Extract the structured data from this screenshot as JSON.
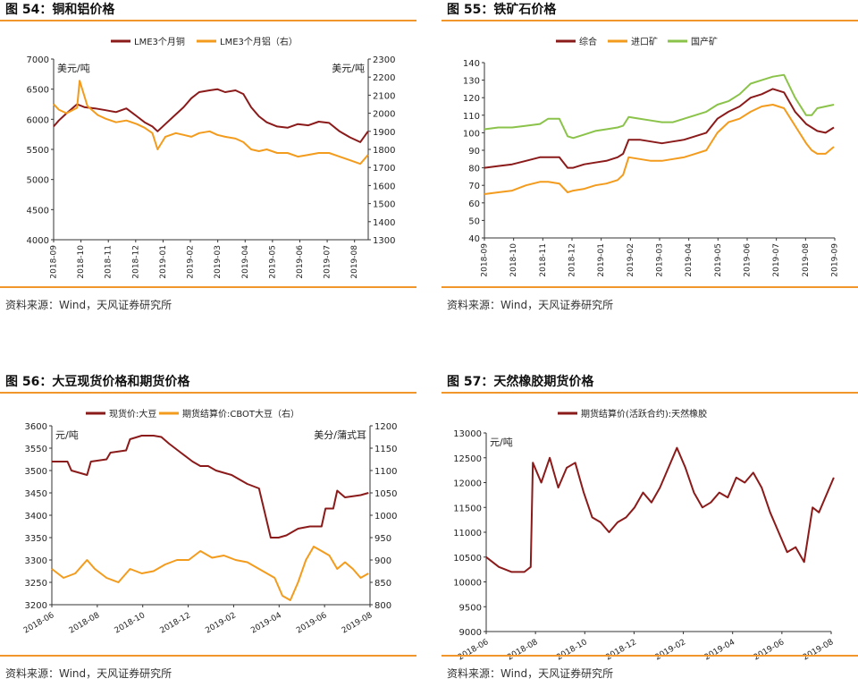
{
  "panels": [
    {
      "title": "图 54：铜和铝价格",
      "source": "资料来源：Wind，天风证券研究所"
    },
    {
      "title": "图 55：铁矿石价格",
      "source": "资料来源：Wind，天风证券研究所"
    },
    {
      "title": "图 56：大豆现货价格和期货价格",
      "source": "资料来源：Wind，天风证券研究所"
    },
    {
      "title": "图 57：天然橡胶期货价格",
      "source": "资料来源：Wind，天风证券研究所"
    }
  ],
  "chart_data": [
    {
      "type": "line",
      "title": "图 54：铜和铝价格",
      "ylabel_left": "美元/吨",
      "ylabel_right": "美元/吨",
      "ylim_left": [
        4000,
        7000
      ],
      "yticks_left": [
        4000,
        4500,
        5000,
        5500,
        6000,
        6500,
        7000
      ],
      "ylim_right": [
        1300,
        2300
      ],
      "yticks_right": [
        1300,
        1400,
        1500,
        1600,
        1700,
        1800,
        1900,
        2000,
        2100,
        2200,
        2300
      ],
      "xticks": [
        "2018-09",
        "2018-10",
        "2018-11",
        "2018-12",
        "2019-01",
        "2019-02",
        "2019-03",
        "2019-04",
        "2019-05",
        "2019-06",
        "2019-07",
        "2019-08"
      ],
      "legend_position": "top",
      "series": [
        {
          "name": "LME3个月铜",
          "axis": "left",
          "color": "#8b1a1a",
          "x": [
            0,
            0.2,
            0.5,
            0.9,
            1.2,
            1.6,
            2.0,
            2.4,
            2.8,
            3.2,
            3.5,
            3.8,
            4.0,
            4.3,
            4.7,
            5.0,
            5.3,
            5.6,
            6.0,
            6.3,
            6.6,
            7.0,
            7.3,
            7.6,
            7.9,
            8.2,
            8.6,
            9.0,
            9.4,
            9.8,
            10.2,
            10.6,
            11.0,
            11.4,
            11.8,
            12.1
          ],
          "values": [
            5880,
            5980,
            6100,
            6250,
            6200,
            6180,
            6150,
            6120,
            6180,
            6050,
            5950,
            5880,
            5800,
            5920,
            6080,
            6200,
            6350,
            6450,
            6480,
            6500,
            6450,
            6480,
            6420,
            6200,
            6050,
            5950,
            5880,
            5860,
            5920,
            5900,
            5960,
            5940,
            5800,
            5700,
            5620,
            5800
          ]
        },
        {
          "name": "LME3个月铝（右）",
          "axis": "right",
          "color": "#f39b1c",
          "x": [
            0,
            0.2,
            0.5,
            0.9,
            1.0,
            1.3,
            1.7,
            2.0,
            2.4,
            2.8,
            3.2,
            3.5,
            3.8,
            4.0,
            4.3,
            4.7,
            5.0,
            5.3,
            5.6,
            6.0,
            6.3,
            6.6,
            7.0,
            7.3,
            7.6,
            7.9,
            8.2,
            8.6,
            9.0,
            9.4,
            9.8,
            10.2,
            10.6,
            11.0,
            11.4,
            11.8,
            12.1
          ],
          "values": [
            2050,
            2020,
            2000,
            2030,
            2180,
            2040,
            1990,
            1970,
            1950,
            1960,
            1940,
            1920,
            1890,
            1800,
            1870,
            1890,
            1880,
            1870,
            1890,
            1900,
            1880,
            1870,
            1860,
            1840,
            1800,
            1790,
            1800,
            1780,
            1780,
            1760,
            1770,
            1780,
            1780,
            1760,
            1740,
            1720,
            1770
          ]
        }
      ]
    },
    {
      "type": "line",
      "title": "图 55：铁矿石价格",
      "ylim": [
        40,
        140
      ],
      "yticks": [
        40,
        50,
        60,
        70,
        80,
        90,
        100,
        110,
        120,
        130,
        140
      ],
      "xticks": [
        "2018-09",
        "2018-10",
        "2018-11",
        "2018-12",
        "2019-01",
        "2019-02",
        "2019-03",
        "2019-04",
        "2019-05",
        "2019-06",
        "2019-07",
        "2019-08",
        "2019-09"
      ],
      "legend_position": "top",
      "series": [
        {
          "name": "综合",
          "color": "#8b1a1a",
          "x": [
            0,
            0.5,
            1,
            1.5,
            2,
            2.3,
            2.7,
            3.0,
            3.2,
            3.6,
            4.0,
            4.4,
            4.8,
            5.0,
            5.2,
            5.6,
            6.0,
            6.4,
            6.8,
            7.2,
            7.6,
            8.0,
            8.4,
            8.8,
            9.2,
            9.6,
            10.0,
            10.4,
            10.8,
            11.2,
            11.6,
            11.8,
            12.0,
            12.3,
            12.6
          ],
          "values": [
            80,
            81,
            82,
            84,
            86,
            86,
            86,
            80,
            80,
            82,
            83,
            84,
            86,
            88,
            96,
            96,
            95,
            94,
            95,
            96,
            98,
            100,
            108,
            112,
            115,
            120,
            122,
            125,
            123,
            112,
            105,
            103,
            101,
            100,
            103
          ]
        },
        {
          "name": "进口矿",
          "color": "#f39b1c",
          "x": [
            0,
            0.5,
            1,
            1.5,
            2,
            2.3,
            2.7,
            3.0,
            3.2,
            3.6,
            4.0,
            4.4,
            4.8,
            5.0,
            5.2,
            5.6,
            6.0,
            6.4,
            6.8,
            7.2,
            7.6,
            8.0,
            8.4,
            8.8,
            9.2,
            9.6,
            10.0,
            10.4,
            10.8,
            11.2,
            11.6,
            11.8,
            12.0,
            12.3,
            12.6
          ],
          "values": [
            65,
            66,
            67,
            70,
            72,
            72,
            71,
            66,
            67,
            68,
            70,
            71,
            73,
            76,
            86,
            85,
            84,
            84,
            85,
            86,
            88,
            90,
            100,
            106,
            108,
            112,
            115,
            116,
            114,
            104,
            94,
            90,
            88,
            88,
            92
          ]
        },
        {
          "name": "国产矿",
          "color": "#8bc34a",
          "x": [
            0,
            0.5,
            1,
            1.5,
            2,
            2.3,
            2.7,
            3.0,
            3.2,
            3.6,
            4.0,
            4.4,
            4.8,
            5.0,
            5.2,
            5.6,
            6.0,
            6.4,
            6.8,
            7.2,
            7.6,
            8.0,
            8.4,
            8.8,
            9.2,
            9.6,
            10.0,
            10.4,
            10.8,
            11.2,
            11.6,
            11.8,
            12.0,
            12.3,
            12.6
          ],
          "values": [
            102,
            103,
            103,
            104,
            105,
            108,
            108,
            98,
            97,
            99,
            101,
            102,
            103,
            104,
            109,
            108,
            107,
            106,
            106,
            108,
            110,
            112,
            116,
            118,
            122,
            128,
            130,
            132,
            133,
            120,
            110,
            110,
            114,
            115,
            116
          ]
        }
      ]
    },
    {
      "type": "line",
      "title": "图 56：大豆现货价格和期货价格",
      "ylabel_left": "元/吨",
      "ylabel_right": "美分/蒲式耳",
      "ylim_left": [
        3200,
        3600
      ],
      "yticks_left": [
        3200,
        3250,
        3300,
        3350,
        3400,
        3450,
        3500,
        3550,
        3600
      ],
      "ylim_right": [
        800,
        1200
      ],
      "yticks_right": [
        800,
        850,
        900,
        950,
        1000,
        1050,
        1100,
        1150,
        1200
      ],
      "xticks": [
        "2018-06",
        "2018-08",
        "2018-10",
        "2018-12",
        "2019-02",
        "2019-04",
        "2019-06",
        "2019-08"
      ],
      "legend_position": "top",
      "series": [
        {
          "name": "现货价:大豆",
          "axis": "left",
          "color": "#8b1a1a",
          "x": [
            0,
            0.4,
            0.5,
            0.9,
            1.0,
            1.4,
            1.5,
            1.9,
            2.0,
            2.3,
            2.6,
            2.8,
            3.0,
            3.3,
            3.6,
            3.8,
            4.0,
            4.2,
            4.4,
            4.6,
            4.8,
            5.0,
            5.3,
            5.6,
            5.8,
            6.0,
            6.3,
            6.6,
            6.9,
            7.0,
            7.2,
            7.3,
            7.5,
            7.9,
            8.1
          ],
          "values": [
            3520,
            3520,
            3500,
            3490,
            3520,
            3525,
            3540,
            3545,
            3570,
            3578,
            3578,
            3575,
            3560,
            3540,
            3520,
            3510,
            3510,
            3500,
            3495,
            3490,
            3480,
            3470,
            3460,
            3350,
            3350,
            3355,
            3370,
            3375,
            3375,
            3415,
            3415,
            3455,
            3440,
            3445,
            3450
          ]
        },
        {
          "name": "期货结算价:CBOT大豆（右）",
          "axis": "right",
          "color": "#f39b1c",
          "x": [
            0,
            0.3,
            0.6,
            0.9,
            1.1,
            1.4,
            1.7,
            2.0,
            2.3,
            2.6,
            2.9,
            3.2,
            3.5,
            3.8,
            4.1,
            4.4,
            4.7,
            5.0,
            5.3,
            5.5,
            5.7,
            5.9,
            6.1,
            6.3,
            6.5,
            6.7,
            6.9,
            7.1,
            7.3,
            7.5,
            7.7,
            7.9,
            8.1
          ],
          "values": [
            880,
            860,
            870,
            900,
            880,
            860,
            850,
            880,
            870,
            875,
            890,
            900,
            900,
            920,
            905,
            910,
            900,
            895,
            880,
            870,
            860,
            820,
            810,
            850,
            900,
            930,
            920,
            910,
            880,
            895,
            880,
            860,
            870
          ]
        }
      ]
    },
    {
      "type": "line",
      "title": "图 57：天然橡胶期货价格",
      "ylabel": "元/吨",
      "ylim": [
        9000,
        13000
      ],
      "yticks": [
        9000,
        9500,
        10000,
        10500,
        11000,
        11500,
        12000,
        12500,
        13000
      ],
      "xticks": [
        "2018-06",
        "2018-08",
        "2018-10",
        "2018-12",
        "2019-02",
        "2019-04",
        "2019-06",
        "2019-08"
      ],
      "legend_position": "top",
      "series": [
        {
          "name": "期货结算价(活跃合约):天然橡胶",
          "color": "#8b1a1a",
          "x": [
            0,
            0.3,
            0.6,
            0.9,
            1.05,
            1.1,
            1.3,
            1.5,
            1.7,
            1.9,
            2.1,
            2.3,
            2.5,
            2.7,
            2.9,
            3.1,
            3.3,
            3.5,
            3.7,
            3.9,
            4.1,
            4.3,
            4.5,
            4.7,
            4.9,
            5.1,
            5.3,
            5.5,
            5.7,
            5.9,
            6.1,
            6.3,
            6.5,
            6.7,
            6.9,
            7.1,
            7.3,
            7.5,
            7.7,
            7.85,
            8.0,
            8.2
          ],
          "values": [
            10500,
            10300,
            10200,
            10200,
            10300,
            12400,
            12000,
            12500,
            11900,
            12300,
            12400,
            11800,
            11300,
            11200,
            11000,
            11200,
            11300,
            11500,
            11800,
            11600,
            11900,
            12300,
            12700,
            12300,
            11800,
            11500,
            11600,
            11800,
            11700,
            12100,
            12000,
            12200,
            11900,
            11400,
            11000,
            10600,
            10700,
            10400,
            11500,
            11400,
            11700,
            12100
          ]
        }
      ]
    }
  ]
}
